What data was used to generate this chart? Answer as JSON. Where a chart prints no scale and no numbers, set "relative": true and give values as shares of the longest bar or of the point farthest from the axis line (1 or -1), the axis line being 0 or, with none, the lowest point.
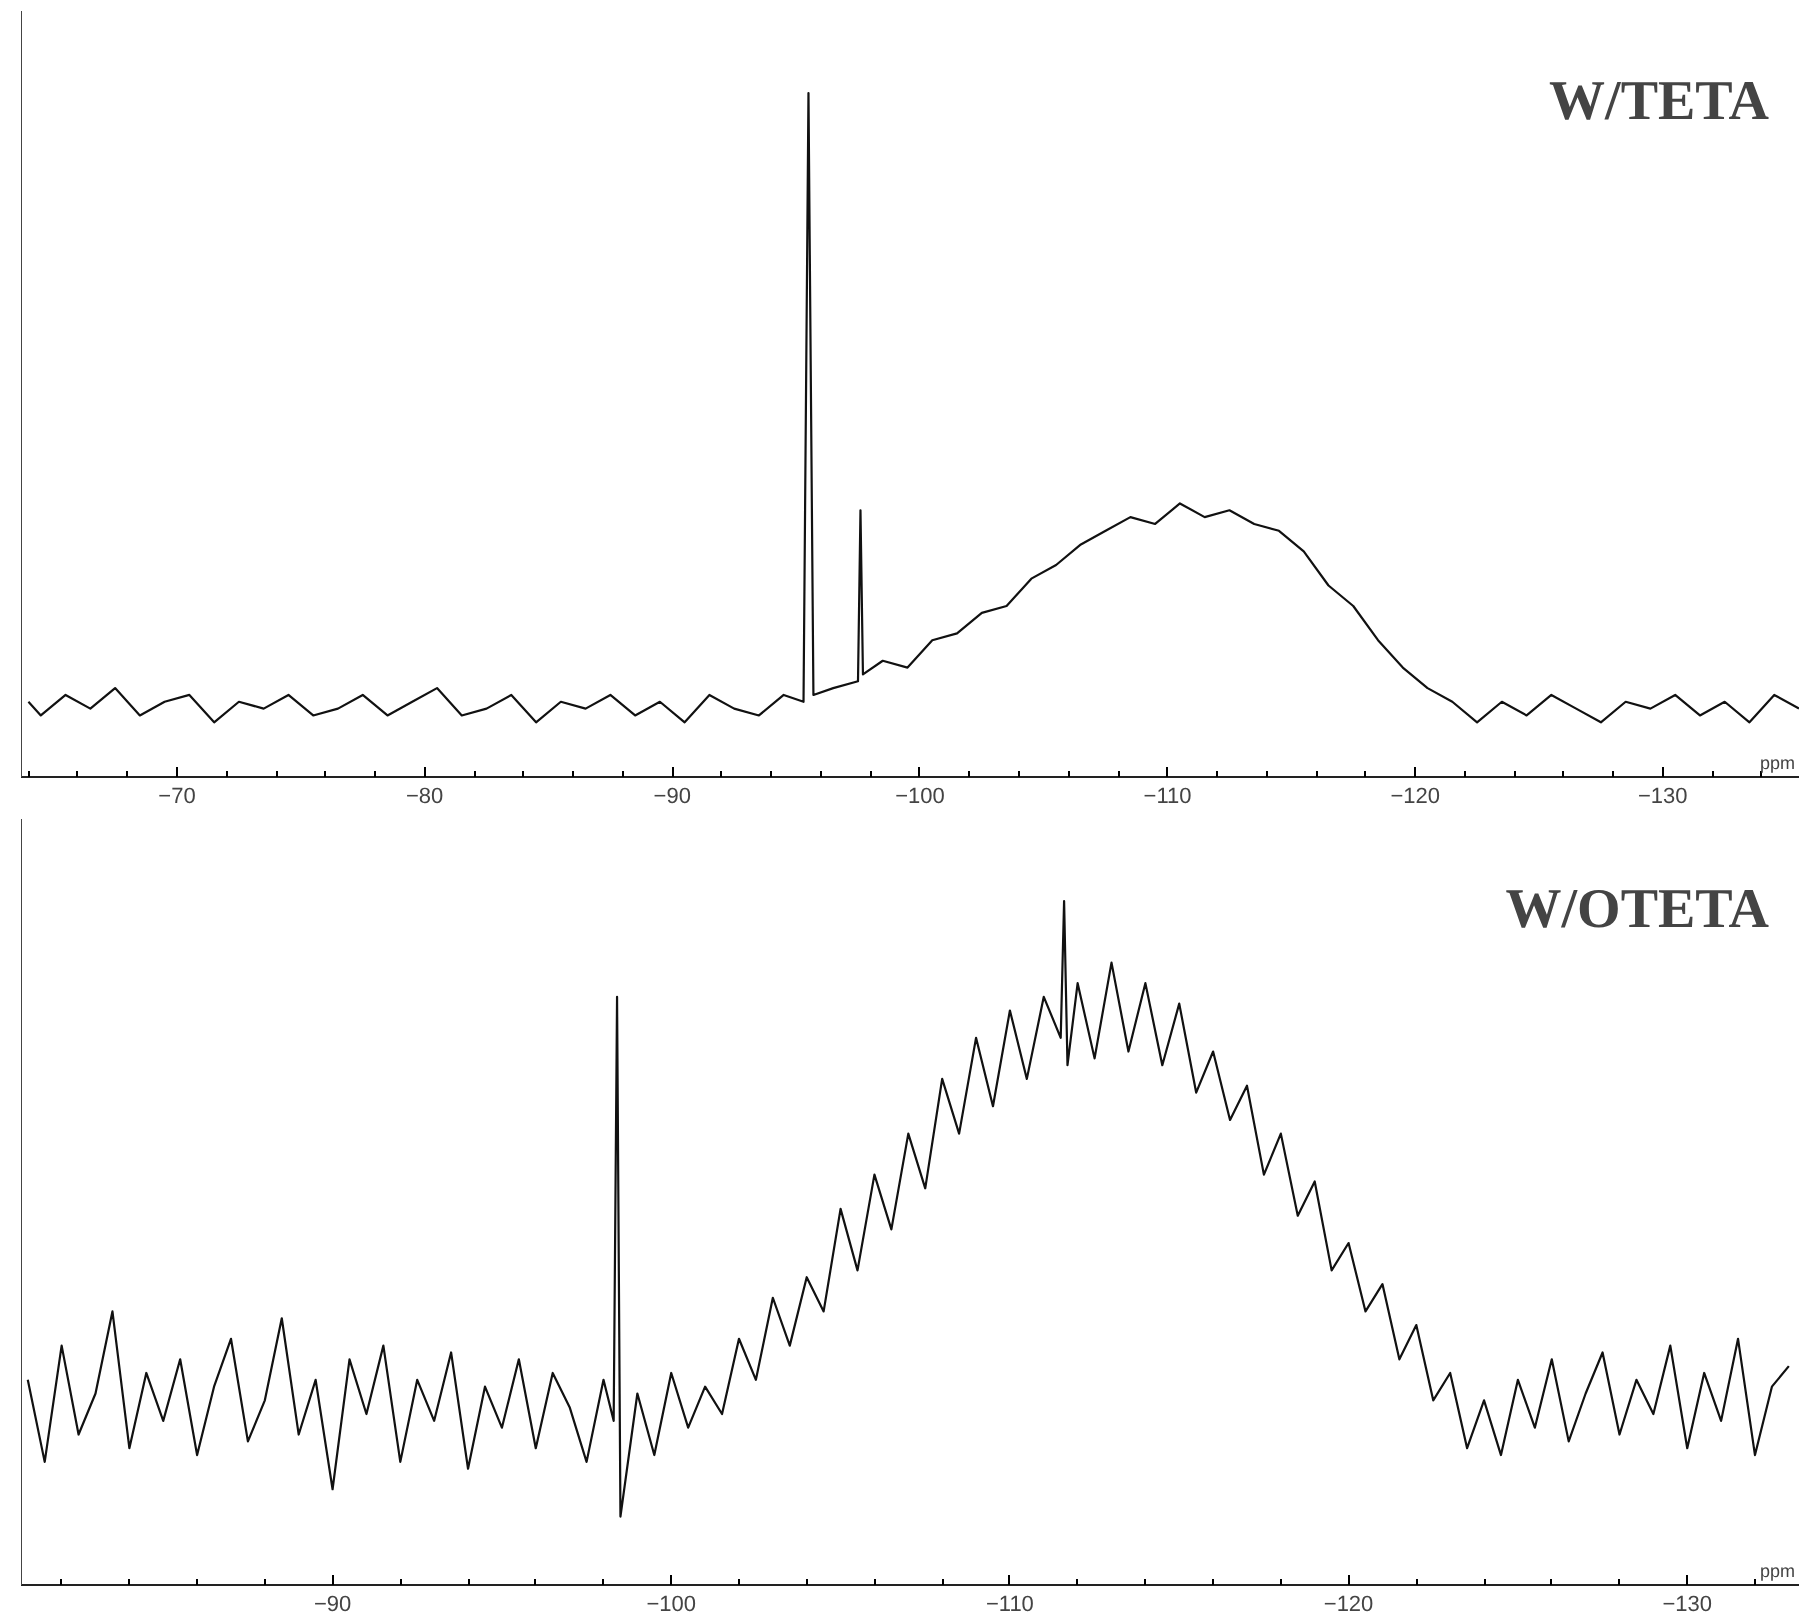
{
  "chart_data": [
    {
      "type": "line",
      "title": "W/TETA",
      "xlabel": "ppm",
      "relative": true,
      "xlim": [
        -63.7,
        -135.5
      ],
      "xticks": [
        -70,
        -80,
        -90,
        -100,
        -110,
        -120,
        -130
      ],
      "grid": false,
      "marker": "none",
      "line_style": "solid",
      "series": [
        {
          "color": "#111111",
          "x": [
            -64,
            -64.5,
            -65.5,
            -66.5,
            -67.5,
            -68.5,
            -69.5,
            -70.5,
            -71.5,
            -72.5,
            -73.5,
            -74.5,
            -75.5,
            -76.5,
            -77.5,
            -78.5,
            -79.5,
            -80.5,
            -81.5,
            -82.5,
            -83.5,
            -84.5,
            -85.5,
            -86.5,
            -87.5,
            -88.5,
            -89.5,
            -90.5,
            -91.5,
            -92.5,
            -93.5,
            -94.5,
            -95.3,
            -95.5,
            -95.7,
            -96.5,
            -97.5,
            -97.6,
            -97.7,
            -98.5,
            -99.5,
            -100.5,
            -101.5,
            -102.5,
            -103.5,
            -104.5,
            -105.5,
            -106.5,
            -107.5,
            -108.5,
            -109.5,
            -110.5,
            -111.5,
            -112.5,
            -113.5,
            -114.5,
            -115.5,
            -116.5,
            -117.5,
            -118.5,
            -119.5,
            -120.5,
            -121.5,
            -122.5,
            -123.5,
            -124.5,
            -125.5,
            -126.5,
            -127.5,
            -128.5,
            -129.5,
            -130.5,
            -131.5,
            -132.5,
            -133.5,
            -134.5,
            -135.5
          ],
          "values": [
            0.11,
            0.09,
            0.12,
            0.1,
            0.13,
            0.09,
            0.11,
            0.12,
            0.08,
            0.11,
            0.1,
            0.12,
            0.09,
            0.1,
            0.12,
            0.09,
            0.11,
            0.13,
            0.09,
            0.1,
            0.12,
            0.08,
            0.11,
            0.1,
            0.12,
            0.09,
            0.11,
            0.08,
            0.12,
            0.1,
            0.09,
            0.12,
            0.11,
            1.0,
            0.12,
            0.13,
            0.14,
            0.39,
            0.15,
            0.17,
            0.16,
            0.2,
            0.21,
            0.24,
            0.25,
            0.29,
            0.31,
            0.34,
            0.36,
            0.38,
            0.37,
            0.4,
            0.38,
            0.39,
            0.37,
            0.36,
            0.33,
            0.28,
            0.25,
            0.2,
            0.16,
            0.13,
            0.11,
            0.08,
            0.11,
            0.09,
            0.12,
            0.1,
            0.08,
            0.11,
            0.1,
            0.12,
            0.09,
            0.11,
            0.08,
            0.12,
            0.1
          ]
        }
      ]
    },
    {
      "type": "line",
      "title": "W/OTETA",
      "xlabel": "ppm",
      "relative": true,
      "xlim": [
        -80.8,
        -133.3
      ],
      "xticks": [
        -90,
        -100,
        -110,
        -120,
        -130
      ],
      "grid": false,
      "marker": "none",
      "line_style": "solid",
      "series": [
        {
          "color": "#111111",
          "x": [
            -81,
            -81.5,
            -82,
            -82.5,
            -83,
            -83.5,
            -84,
            -84.5,
            -85,
            -85.5,
            -86,
            -86.5,
            -87,
            -87.5,
            -88,
            -88.5,
            -89,
            -89.5,
            -90,
            -90.5,
            -91,
            -91.5,
            -92,
            -92.5,
            -93,
            -93.5,
            -94,
            -94.5,
            -95,
            -95.5,
            -96,
            -96.5,
            -97,
            -97.5,
            -98,
            -98.3,
            -98.4,
            -98.5,
            -99,
            -99.5,
            -100,
            -100.5,
            -101,
            -101.5,
            -102,
            -102.5,
            -103,
            -103.5,
            -104,
            -104.5,
            -105,
            -105.5,
            -106,
            -106.5,
            -107,
            -107.5,
            -108,
            -108.5,
            -109,
            -109.5,
            -110,
            -110.5,
            -111,
            -111.5,
            -111.6,
            -111.7,
            -112,
            -112.5,
            -113,
            -113.5,
            -114,
            -114.5,
            -115,
            -115.5,
            -116,
            -116.5,
            -117,
            -117.5,
            -118,
            -118.5,
            -119,
            -119.5,
            -120,
            -120.5,
            -121,
            -121.5,
            -122,
            -122.5,
            -123,
            -123.5,
            -124,
            -124.5,
            -125,
            -125.5,
            -126,
            -126.5,
            -127,
            -127.5,
            -128,
            -128.5,
            -129,
            -129.5,
            -130,
            -130.5,
            -131,
            -131.5,
            -132,
            -132.5,
            -133
          ],
          "values": [
            0.3,
            0.18,
            0.35,
            0.22,
            0.28,
            0.4,
            0.2,
            0.31,
            0.24,
            0.33,
            0.19,
            0.29,
            0.36,
            0.21,
            0.27,
            0.39,
            0.22,
            0.3,
            0.14,
            0.33,
            0.25,
            0.35,
            0.18,
            0.3,
            0.24,
            0.34,
            0.17,
            0.29,
            0.23,
            0.33,
            0.2,
            0.31,
            0.26,
            0.18,
            0.3,
            0.24,
            0.86,
            0.1,
            0.28,
            0.19,
            0.31,
            0.23,
            0.29,
            0.25,
            0.36,
            0.3,
            0.42,
            0.35,
            0.45,
            0.4,
            0.55,
            0.46,
            0.6,
            0.52,
            0.66,
            0.58,
            0.74,
            0.66,
            0.8,
            0.7,
            0.84,
            0.74,
            0.86,
            0.8,
            1.0,
            0.76,
            0.88,
            0.77,
            0.91,
            0.78,
            0.88,
            0.76,
            0.85,
            0.72,
            0.78,
            0.68,
            0.73,
            0.6,
            0.66,
            0.54,
            0.59,
            0.46,
            0.5,
            0.4,
            0.44,
            0.33,
            0.38,
            0.27,
            0.31,
            0.2,
            0.27,
            0.19,
            0.3,
            0.23,
            0.33,
            0.21,
            0.28,
            0.34,
            0.22,
            0.3,
            0.25,
            0.35,
            0.2,
            0.31,
            0.24,
            0.36,
            0.19,
            0.29,
            0.32
          ]
        }
      ]
    }
  ]
}
